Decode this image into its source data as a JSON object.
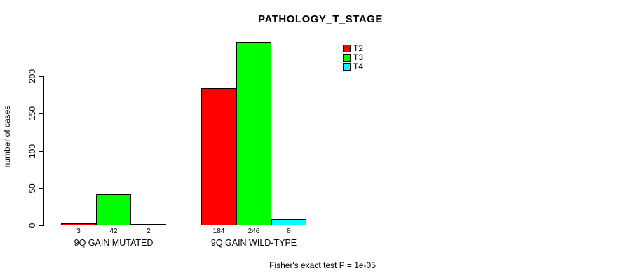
{
  "chart_data": {
    "type": "bar",
    "title": "PATHOLOGY_T_STAGE",
    "ylabel": "number of cases",
    "xlabel": "",
    "yticks": [
      0,
      50,
      100,
      150,
      200
    ],
    "ylim": [
      0,
      250
    ],
    "grid": false,
    "legend_position": "top-right",
    "categories": [
      "9Q GAIN MUTATED",
      "9Q GAIN WILD-TYPE"
    ],
    "series": [
      {
        "name": "T2",
        "color": "#ff0000",
        "values": [
          3,
          184
        ]
      },
      {
        "name": "T3",
        "color": "#00ff00",
        "values": [
          42,
          246
        ]
      },
      {
        "name": "T4",
        "color": "#00ffff",
        "values": [
          2,
          8
        ]
      }
    ],
    "footnote": "Fisher's exact test P = 1e-05"
  }
}
